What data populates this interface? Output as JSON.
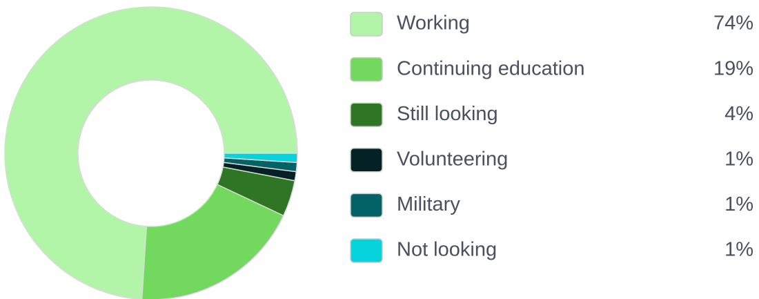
{
  "chart_data": {
    "type": "donut",
    "categories": [
      "Working",
      "Continuing education",
      "Still looking",
      "Volunteering",
      "Military",
      "Not looking"
    ],
    "values": [
      74,
      19,
      4,
      1,
      1,
      1
    ],
    "value_labels": [
      "74%",
      "19%",
      "4%",
      "1%",
      "1%",
      "1%"
    ],
    "colors": [
      "#b3f5a8",
      "#72d95e",
      "#2e7524",
      "#042126",
      "#036266",
      "#06d3dc"
    ],
    "legend": "right"
  }
}
